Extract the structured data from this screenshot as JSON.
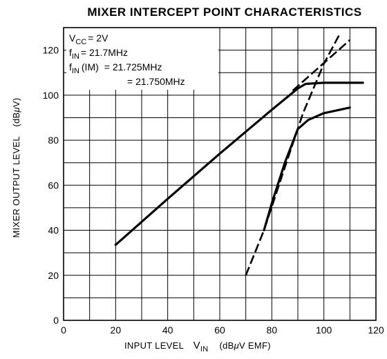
{
  "chart_data": {
    "type": "line",
    "title": "MIXER INTERCEPT POINT CHARACTERISTICS",
    "xlabel": {
      "prefix": "INPUT LEVEL",
      "var_main": "V",
      "var_sub": "IN",
      "unit_open": "(dB",
      "unit_mu": "μ",
      "unit_rest": "V EMF)"
    },
    "ylabel": {
      "text": "MIXER OUTPUT LEVEL",
      "unit_open": "(dB",
      "unit_mu": "μ",
      "unit_rest": "V)"
    },
    "xlim": [
      0,
      120
    ],
    "ylim": [
      0,
      130
    ],
    "x_ticks": [
      0,
      20,
      40,
      60,
      80,
      100,
      120
    ],
    "y_ticks": [
      0,
      20,
      40,
      60,
      80,
      100,
      120
    ],
    "grid": true,
    "conditions": {
      "vcc_main": "V",
      "vcc_sub": "CC",
      "vcc_value": "= 2V",
      "fin_main": "f",
      "fin_sub": "IN",
      "fin_value": "= 21.7MHz",
      "fim_main": "f",
      "fim_sub": "IN",
      "fim_paren": "(IM)",
      "fim_value1": "= 21.725MHz",
      "fim_value2": "= 21.750MHz"
    },
    "series": [
      {
        "style": "solid",
        "points": [
          [
            20,
            33.5
          ],
          [
            40,
            54
          ],
          [
            60,
            74
          ],
          [
            80,
            93.5
          ],
          [
            90,
            103
          ],
          [
            93,
            105
          ],
          [
            100,
            105.5
          ],
          [
            115,
            105.5
          ]
        ]
      },
      {
        "style": "dashed",
        "points": [
          [
            88,
            102
          ],
          [
            110,
            124.5
          ]
        ]
      },
      {
        "style": "solid",
        "points": [
          [
            77,
            40
          ],
          [
            80,
            52
          ],
          [
            85,
            70
          ],
          [
            90,
            85
          ],
          [
            94,
            89
          ],
          [
            100,
            92
          ],
          [
            110,
            94.5
          ]
        ]
      },
      {
        "style": "dashed",
        "points": [
          [
            70,
            20
          ],
          [
            77,
            40
          ],
          [
            85,
            68
          ],
          [
            92,
            92
          ],
          [
            100,
            114
          ],
          [
            106,
            127
          ]
        ]
      }
    ]
  }
}
